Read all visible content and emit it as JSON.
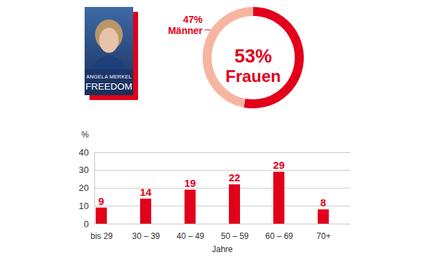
{
  "cover": {
    "author": "ANGELA MERKEL",
    "title": "FREEDOM"
  },
  "chart_data": [
    {
      "type": "pie",
      "categories": [
        "Frauen",
        "Männer"
      ],
      "values": [
        53,
        47
      ],
      "value_labels": [
        "53%",
        "47%"
      ],
      "colors": [
        "#e2001a",
        "#f5b5a1"
      ],
      "data_labels": true
    },
    {
      "type": "bar",
      "ylabel": "%",
      "xlabel": "Jahre",
      "categories": [
        "bis 29",
        "30 – 39",
        "40 – 49",
        "50 – 59",
        "60 – 69",
        "70+"
      ],
      "values": [
        9,
        14,
        19,
        22,
        29,
        8
      ],
      "color": "#e2001a",
      "ylim": [
        0,
        40
      ],
      "yticks": [
        0,
        10,
        20,
        30,
        40
      ],
      "grid": true,
      "data_labels": true
    }
  ]
}
